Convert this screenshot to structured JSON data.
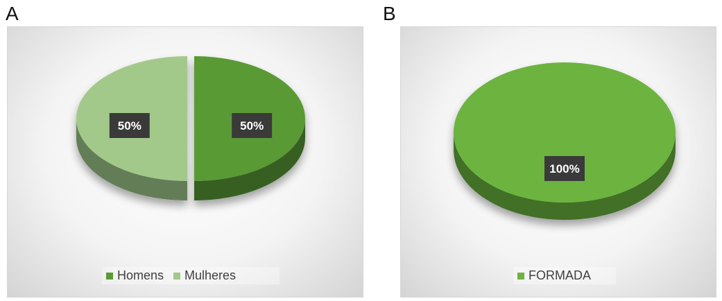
{
  "panels": [
    {
      "letter": "A"
    },
    {
      "letter": "B"
    }
  ],
  "chart_data": [
    {
      "type": "pie",
      "categories": [
        "Homens",
        "Mulheres"
      ],
      "values": [
        50,
        50
      ],
      "data_labels": [
        "50%",
        "50%"
      ],
      "colors": [
        "#5a9a34",
        "#a2c98a"
      ],
      "legend_position": "bottom",
      "style": "3d"
    },
    {
      "type": "pie",
      "categories": [
        "FORMADA"
      ],
      "values": [
        100
      ],
      "data_labels": [
        "100%"
      ],
      "colors": [
        "#6cb33f"
      ],
      "legend_position": "bottom",
      "style": "3d"
    }
  ]
}
